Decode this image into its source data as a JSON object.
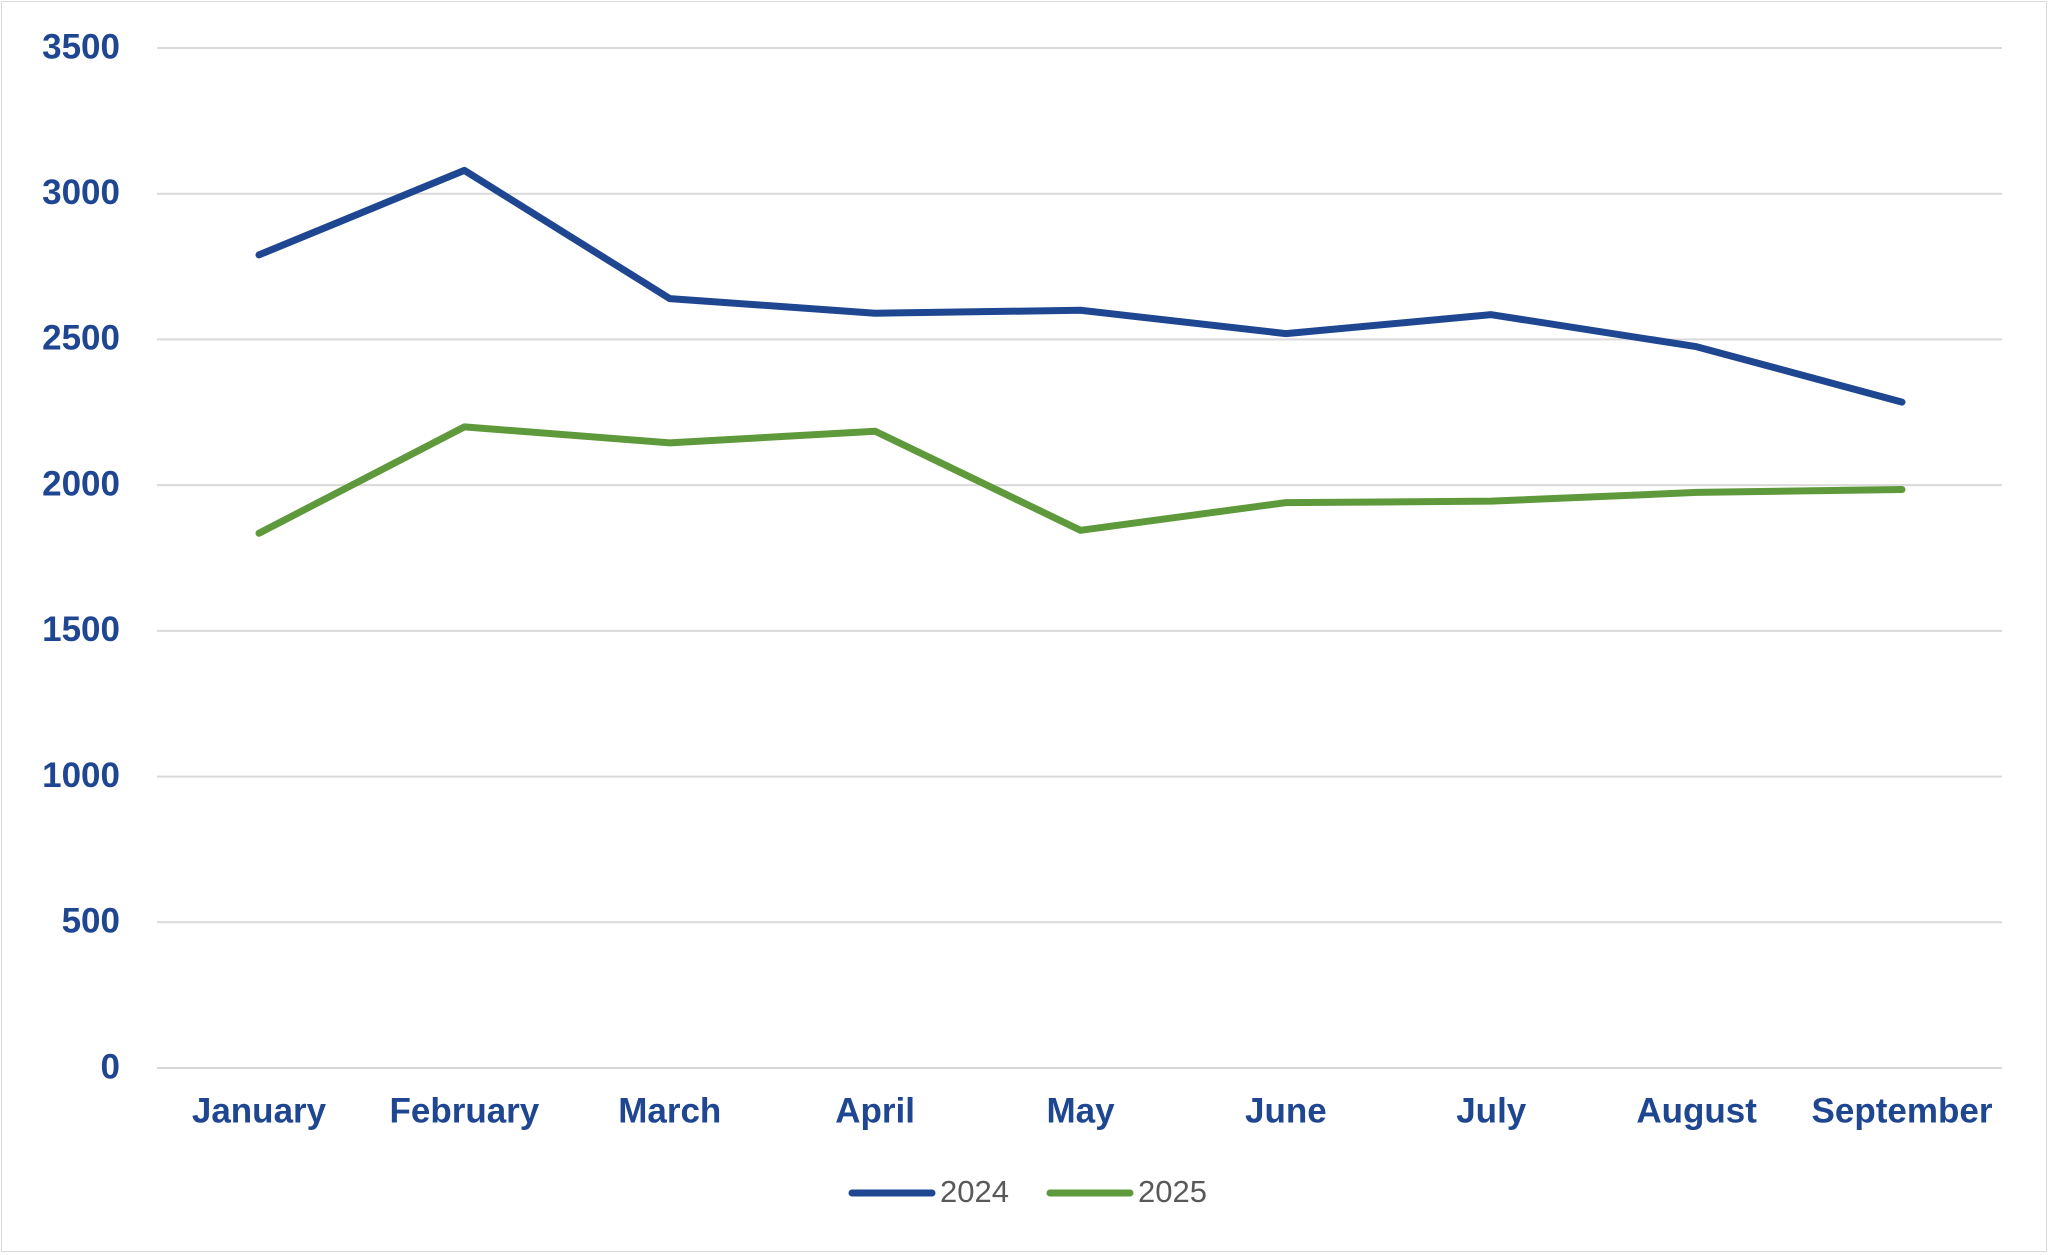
{
  "colors": {
    "axis_text": "#1F4690",
    "grid": "#D9D9D9",
    "legend_text": "#595959",
    "series_2024": "#1F4690",
    "series_2025": "#5E9A3C"
  },
  "chart_data": {
    "type": "line",
    "title": "",
    "xlabel": "",
    "ylabel": "",
    "categories": [
      "January",
      "February",
      "March",
      "April",
      "May",
      "June",
      "July",
      "August",
      "September"
    ],
    "ylim": [
      0,
      3500
    ],
    "yticks": [
      0,
      500,
      1000,
      1500,
      2000,
      2500,
      3000,
      3500
    ],
    "grid": true,
    "legend": "bottom",
    "series": [
      {
        "name": "2024",
        "color": "#1F4690",
        "values": [
          2790,
          3080,
          2640,
          2590,
          2600,
          2520,
          2585,
          2475,
          2285
        ]
      },
      {
        "name": "2025",
        "color": "#5E9A3C",
        "values": [
          1835,
          2200,
          2145,
          2185,
          1845,
          1940,
          1945,
          1975,
          1985
        ]
      }
    ]
  }
}
